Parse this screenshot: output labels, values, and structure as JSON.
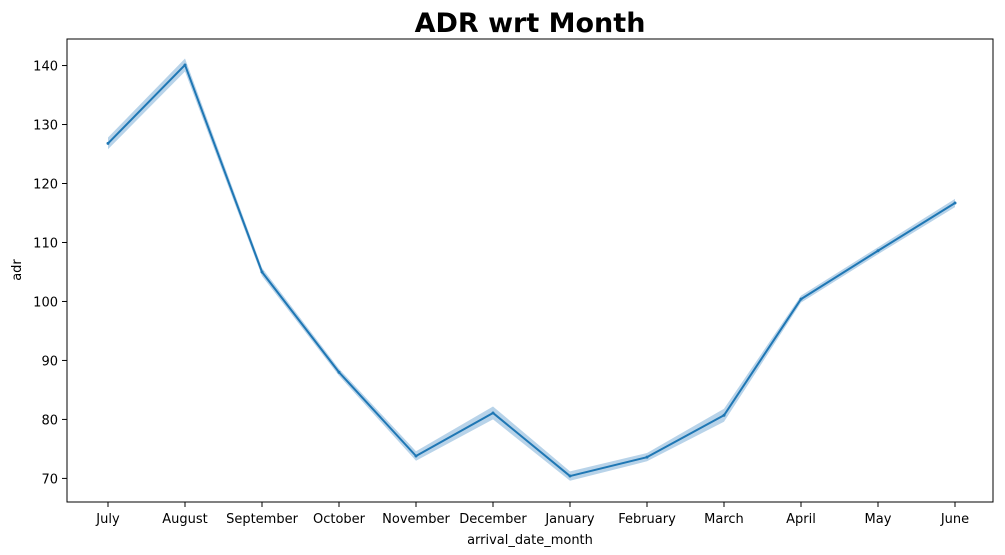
{
  "chart_data": {
    "type": "line",
    "title": "ADR wrt Month",
    "xlabel": "arrival_date_month",
    "ylabel": "adr",
    "categories": [
      "July",
      "August",
      "September",
      "October",
      "November",
      "December",
      "January",
      "February",
      "March",
      "April",
      "May",
      "June"
    ],
    "series": [
      {
        "values": [
          126.8,
          140.1,
          105.0,
          88.0,
          73.8,
          81.1,
          70.4,
          73.6,
          80.7,
          100.4,
          108.6,
          116.7
        ],
        "ci_lower": [
          125.8,
          139.0,
          104.3,
          87.4,
          73.0,
          80.0,
          69.6,
          72.9,
          79.6,
          99.8,
          108.0,
          116.0
        ],
        "ci_upper": [
          127.8,
          141.2,
          105.7,
          88.6,
          74.6,
          82.2,
          71.2,
          74.3,
          81.8,
          101.0,
          109.2,
          117.4
        ]
      }
    ],
    "yticks": [
      70,
      80,
      90,
      100,
      110,
      120,
      130,
      140
    ],
    "ylim": [
      66.0,
      144.5
    ],
    "grid": false,
    "colors": {
      "line": "#1f77b4",
      "band": "#a6c8e4"
    }
  }
}
